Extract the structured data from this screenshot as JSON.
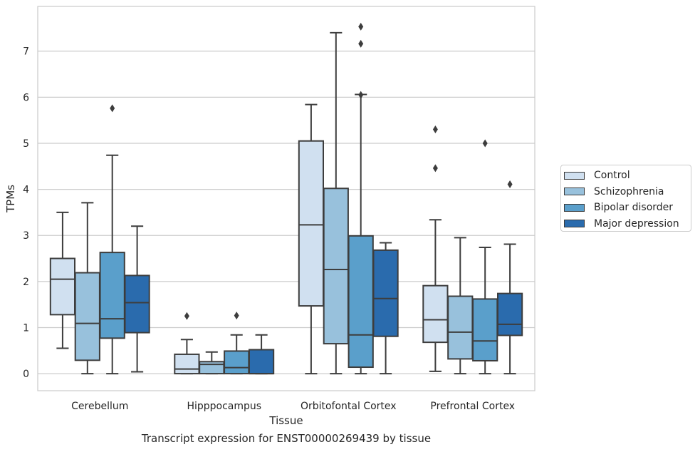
{
  "chart_data": {
    "type": "box",
    "xlabel": "Tissue",
    "ylabel": "TPMs",
    "caption": "Transcript expression for ENST00000269439 by tissue",
    "categories": [
      "Cerebellum",
      "Hipppocampus",
      "Orbitofontal Cortex",
      "Prefrontal Cortex"
    ],
    "ylim": [
      -0.37,
      7.97
    ],
    "yticks": [
      0,
      1,
      2,
      3,
      4,
      5,
      6,
      7
    ],
    "grid": "horizontal",
    "legend_position": "right",
    "series": [
      {
        "name": "Control",
        "color": "#d0e0f0",
        "boxes": [
          {
            "whislo": 0.55,
            "q1": 1.28,
            "med": 2.05,
            "q3": 2.5,
            "whishi": 3.5,
            "fliers": []
          },
          {
            "whislo": 0.0,
            "q1": 0.0,
            "med": 0.1,
            "q3": 0.42,
            "whishi": 0.74,
            "fliers": [
              1.25
            ]
          },
          {
            "whislo": 0.0,
            "q1": 1.47,
            "med": 3.23,
            "q3": 5.05,
            "whishi": 5.84,
            "fliers": []
          },
          {
            "whislo": 0.05,
            "q1": 0.68,
            "med": 1.17,
            "q3": 1.91,
            "whishi": 3.34,
            "fliers": [
              4.46,
              5.3
            ]
          }
        ]
      },
      {
        "name": "Schizophrenia",
        "color": "#98c1dc",
        "boxes": [
          {
            "whislo": 0.0,
            "q1": 0.29,
            "med": 1.09,
            "q3": 2.19,
            "whishi": 3.71,
            "fliers": []
          },
          {
            "whislo": 0.0,
            "q1": 0.0,
            "med": 0.2,
            "q3": 0.26,
            "whishi": 0.47,
            "fliers": []
          },
          {
            "whislo": 0.0,
            "q1": 0.65,
            "med": 2.26,
            "q3": 4.02,
            "whishi": 7.4,
            "fliers": []
          },
          {
            "whislo": 0.0,
            "q1": 0.32,
            "med": 0.9,
            "q3": 1.68,
            "whishi": 2.95,
            "fliers": []
          }
        ]
      },
      {
        "name": "Bipolar disorder",
        "color": "#5a9fcb",
        "boxes": [
          {
            "whislo": 0.0,
            "q1": 0.77,
            "med": 1.19,
            "q3": 2.63,
            "whishi": 4.74,
            "fliers": [
              5.76
            ]
          },
          {
            "whislo": 0.0,
            "q1": 0.0,
            "med": 0.13,
            "q3": 0.49,
            "whishi": 0.84,
            "fliers": [
              1.26
            ]
          },
          {
            "whislo": 0.0,
            "q1": 0.14,
            "med": 0.84,
            "q3": 2.99,
            "whishi": 6.06,
            "fliers": [
              6.05,
              7.16,
              7.53
            ]
          },
          {
            "whislo": 0.0,
            "q1": 0.28,
            "med": 0.71,
            "q3": 1.62,
            "whishi": 2.74,
            "fliers": [
              5.0
            ]
          }
        ]
      },
      {
        "name": "Major depression",
        "color": "#2a6bad",
        "boxes": [
          {
            "whislo": 0.04,
            "q1": 0.89,
            "med": 1.54,
            "q3": 2.13,
            "whishi": 3.2,
            "fliers": []
          },
          {
            "whislo": 0.0,
            "q1": 0.0,
            "med": 0.0,
            "q3": 0.52,
            "whishi": 0.84,
            "fliers": []
          },
          {
            "whislo": 0.0,
            "q1": 0.81,
            "med": 1.63,
            "q3": 2.68,
            "whishi": 2.84,
            "fliers": []
          },
          {
            "whislo": 0.0,
            "q1": 0.83,
            "med": 1.07,
            "q3": 1.74,
            "whishi": 2.81,
            "fliers": [
              4.11
            ]
          }
        ]
      }
    ]
  }
}
